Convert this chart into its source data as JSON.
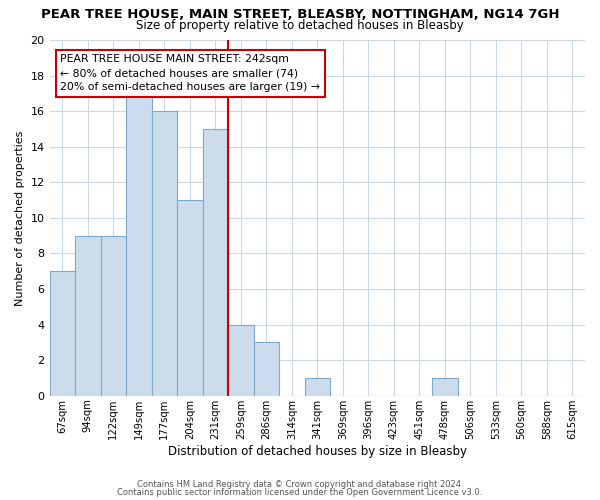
{
  "title": "PEAR TREE HOUSE, MAIN STREET, BLEASBY, NOTTINGHAM, NG14 7GH",
  "subtitle": "Size of property relative to detached houses in Bleasby",
  "xlabel": "Distribution of detached houses by size in Bleasby",
  "ylabel": "Number of detached properties",
  "categories": [
    "67sqm",
    "94sqm",
    "122sqm",
    "149sqm",
    "177sqm",
    "204sqm",
    "231sqm",
    "259sqm",
    "286sqm",
    "314sqm",
    "341sqm",
    "369sqm",
    "396sqm",
    "423sqm",
    "451sqm",
    "478sqm",
    "506sqm",
    "533sqm",
    "560sqm",
    "588sqm",
    "615sqm"
  ],
  "values": [
    7,
    9,
    9,
    17,
    16,
    11,
    15,
    4,
    3,
    0,
    1,
    0,
    0,
    0,
    0,
    1,
    0,
    0,
    0,
    0,
    0
  ],
  "bar_color": "#ccdcec",
  "bar_edge_color": "#7ca8cc",
  "ylim": [
    0,
    20
  ],
  "yticks": [
    0,
    2,
    4,
    6,
    8,
    10,
    12,
    14,
    16,
    18,
    20
  ],
  "vline_color": "#cc0000",
  "annotation_line1": "PEAR TREE HOUSE MAIN STREET: 242sqm",
  "annotation_line2": "← 80% of detached houses are smaller (74)",
  "annotation_line3": "20% of semi-detached houses are larger (19) →",
  "annotation_box_edge": "#cc0000",
  "footer1": "Contains HM Land Registry data © Crown copyright and database right 2024.",
  "footer2": "Contains public sector information licensed under the Open Government Licence v3.0.",
  "background_color": "#ffffff",
  "grid_color": "#c8d8e8"
}
